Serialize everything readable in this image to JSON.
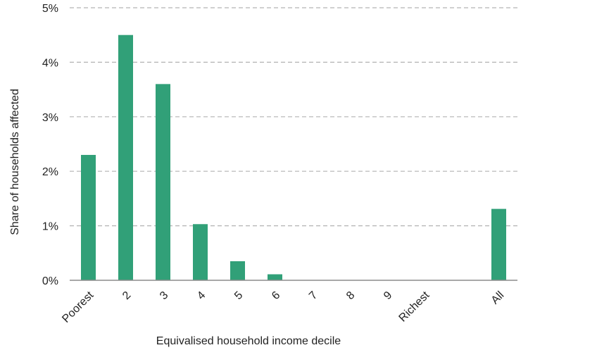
{
  "chart_data": {
    "type": "bar",
    "categories": [
      "Poorest",
      "2",
      "3",
      "4",
      "5",
      "6",
      "7",
      "8",
      "9",
      "Richest",
      "",
      "All"
    ],
    "values": [
      2.3,
      4.5,
      3.6,
      1.03,
      0.35,
      0.11,
      0,
      0,
      0,
      0,
      null,
      1.31
    ],
    "xlabel": "Equivalised household income decile",
    "ylabel": "Share of households affected",
    "ylim": [
      0,
      5
    ],
    "yticks": [
      "0%",
      "1%",
      "2%",
      "3%",
      "4%",
      "5%"
    ],
    "ytick_values": [
      0,
      1,
      2,
      3,
      4,
      5
    ],
    "grid": true,
    "bar_color": "#31a078"
  }
}
